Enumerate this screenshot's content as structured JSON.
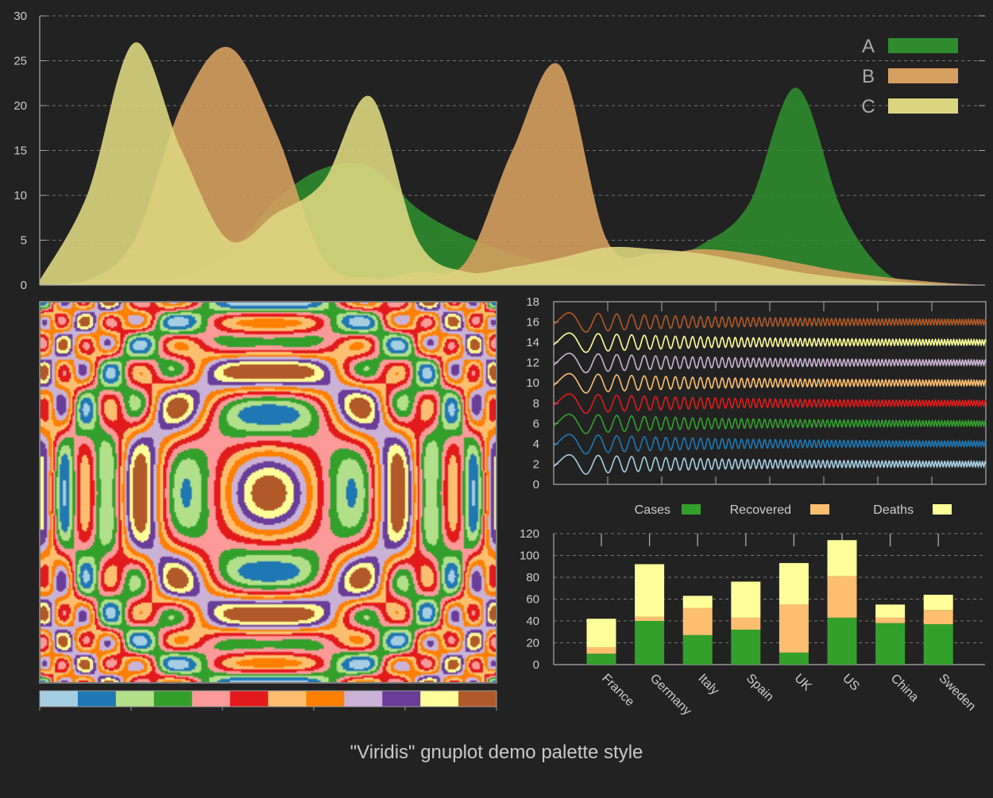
{
  "caption": "\"Viridis\" gnuplot demo palette style",
  "colors": {
    "background": "#222222",
    "text": "#cccccc",
    "grid": "#777777",
    "a": "#2e8b2e",
    "b": "#d59f5f",
    "c": "#dcd580",
    "palette": [
      "#a6cee3",
      "#1f78b4",
      "#b2df8a",
      "#33a02c",
      "#fb9a99",
      "#e31a1c",
      "#fdbf6f",
      "#ff7f00",
      "#cab2d6",
      "#6a3d9a",
      "#ffff99",
      "#b15928"
    ]
  },
  "chart_data": [
    {
      "type": "area",
      "title": "",
      "ylim": [
        0,
        30
      ],
      "y_ticks": [
        "0",
        "5",
        "10",
        "15",
        "20",
        "25",
        "30"
      ],
      "grid": true,
      "legend": "top-right",
      "series": [
        {
          "name": "A",
          "color": "#2e8b2e",
          "x": [
            0,
            5,
            10,
            15,
            20,
            25,
            30,
            35,
            40,
            45,
            50,
            55,
            60,
            65,
            70,
            75,
            80,
            85,
            90,
            95,
            100
          ],
          "values": [
            0,
            0.1,
            0.3,
            1.0,
            3.5,
            9.5,
            13.0,
            13.2,
            8.5,
            5.5,
            3.5,
            2.0,
            1.5,
            2.5,
            4.5,
            9.0,
            22.0,
            8.0,
            1.0,
            0.2,
            0
          ]
        },
        {
          "name": "B",
          "color": "#d59f5f",
          "x": [
            0,
            5,
            10,
            15,
            20,
            25,
            30,
            35,
            40,
            45,
            50,
            55,
            60,
            65,
            70,
            75,
            80,
            85,
            90,
            95,
            100
          ],
          "values": [
            0,
            0.5,
            5.0,
            20.0,
            26.5,
            17.0,
            3.0,
            0.8,
            1.5,
            2.5,
            15.0,
            24.5,
            5.0,
            3.5,
            4.0,
            3.5,
            2.5,
            1.5,
            0.8,
            0.3,
            0
          ]
        },
        {
          "name": "C",
          "color": "#dcd580",
          "x": [
            0,
            5,
            10,
            15,
            20,
            25,
            30,
            35,
            40,
            45,
            50,
            55,
            60,
            65,
            70,
            75,
            80,
            85,
            90,
            95,
            100
          ],
          "values": [
            0.5,
            10.0,
            27.0,
            15.0,
            5.0,
            8.0,
            11.5,
            21.0,
            5.0,
            1.5,
            2.0,
            3.0,
            4.2,
            4.0,
            3.5,
            2.5,
            1.5,
            0.8,
            0.4,
            0.1,
            0
          ]
        }
      ]
    },
    {
      "type": "heatmap",
      "title": "",
      "description_free": true,
      "colorbar_levels": 12
    },
    {
      "type": "line",
      "title": "",
      "ylim": [
        0,
        18
      ],
      "y_ticks": [
        "0",
        "2",
        "4",
        "6",
        "8",
        "10",
        "12",
        "14",
        "16",
        "18"
      ],
      "series": [
        {
          "offset": 2,
          "color": "#a6cee3"
        },
        {
          "offset": 4,
          "color": "#1f78b4"
        },
        {
          "offset": 6,
          "color": "#33a02c"
        },
        {
          "offset": 8,
          "color": "#e31a1c"
        },
        {
          "offset": 10,
          "color": "#fdbf6f"
        },
        {
          "offset": 12,
          "color": "#cab2d6"
        },
        {
          "offset": 14,
          "color": "#ffff99"
        },
        {
          "offset": 16,
          "color": "#b15928"
        }
      ]
    },
    {
      "type": "bar",
      "stacked": true,
      "title": "",
      "ylim": [
        0,
        120
      ],
      "y_ticks": [
        "0",
        "20",
        "40",
        "60",
        "80",
        "100",
        "120"
      ],
      "legend": "top",
      "categories": [
        "France",
        "Germany",
        "Italy",
        "Spain",
        "UK",
        "US",
        "China",
        "Sweden"
      ],
      "series": [
        {
          "name": "Cases",
          "color": "#33a02c",
          "values": [
            10,
            40,
            27,
            32,
            11,
            43,
            38,
            37
          ]
        },
        {
          "name": "Recovered",
          "color": "#fdbf6f",
          "values": [
            6,
            4,
            25,
            11,
            44,
            38,
            5,
            13
          ]
        },
        {
          "name": "Deaths",
          "color": "#ffff99",
          "values": [
            26,
            48,
            11,
            33,
            38,
            33,
            12,
            14
          ]
        }
      ]
    }
  ]
}
